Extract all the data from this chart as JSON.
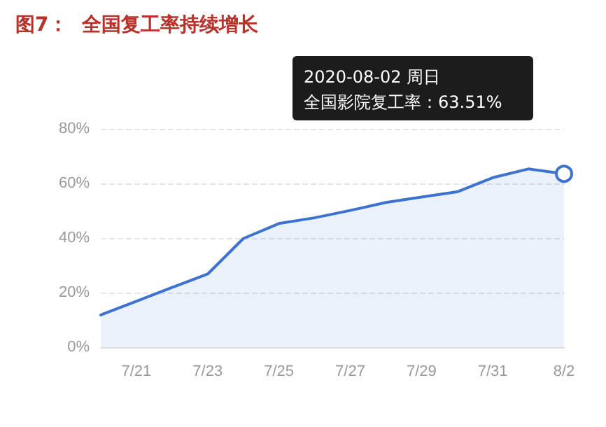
{
  "chart_data": {
    "type": "area",
    "title": "图7：  全国复工率持续增长",
    "categories": [
      null,
      "7/21",
      null,
      "7/23",
      null,
      "7/25",
      null,
      "7/27",
      null,
      "7/29",
      null,
      "7/31",
      null,
      "8/2"
    ],
    "series": [
      {
        "color": "#3d72d1",
        "values": [
          11.8,
          16.8,
          21.9,
          26.8,
          39.8,
          45.3,
          47.4,
          50.1,
          53.0,
          55.0,
          56.9,
          62.1,
          65.3,
          63.51
        ]
      }
    ],
    "ylim": [
      0,
      80
    ],
    "yticks": [
      {
        "value": 0,
        "label": "0%"
      },
      {
        "value": 20,
        "label": "20%"
      },
      {
        "value": 40,
        "label": "40%"
      },
      {
        "value": 60,
        "label": "60%"
      },
      {
        "value": 80,
        "label": "80%"
      }
    ],
    "grid": "y",
    "marker": "none",
    "line_style": "solid",
    "annotations": [
      "2020-08-02 周日",
      "全国影院复工率：63.51%"
    ]
  }
}
